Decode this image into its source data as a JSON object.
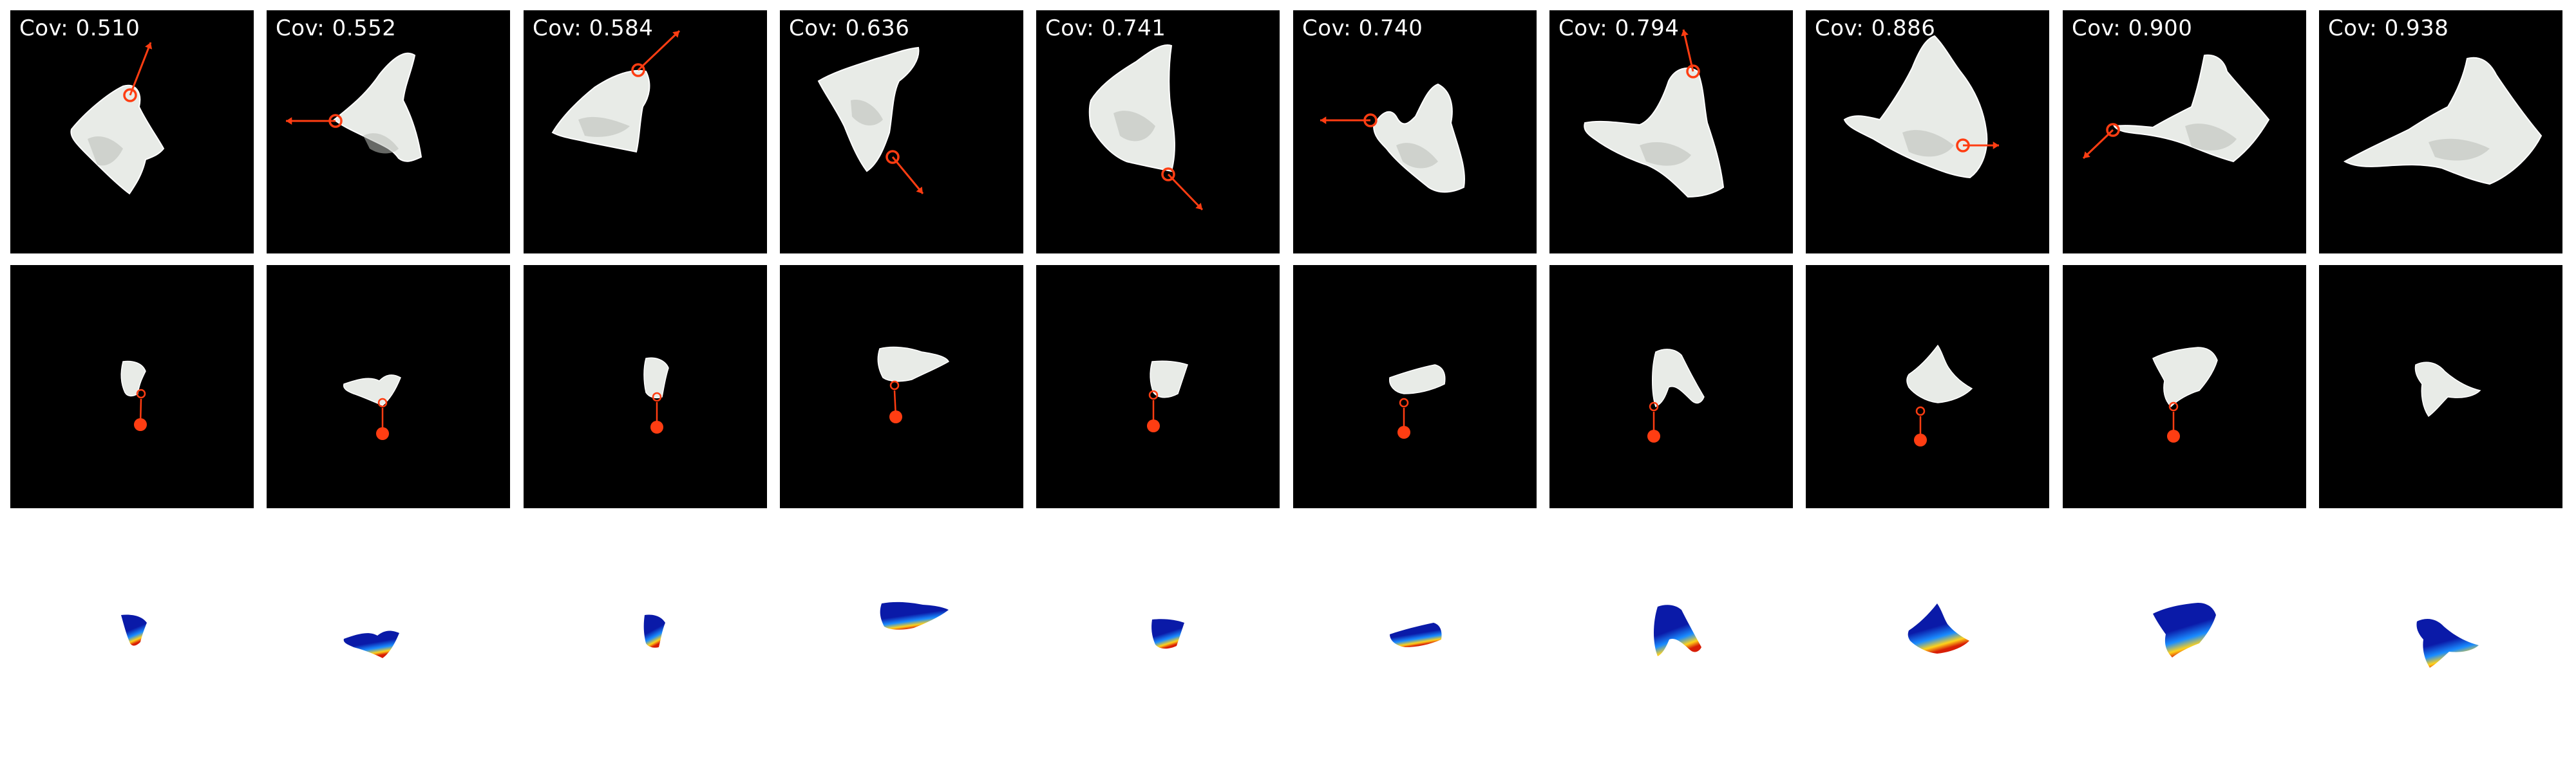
{
  "figure": {
    "rows": [
      "rgb-view",
      "overhead-view",
      "depth-map"
    ],
    "colors": {
      "background_dark": "#000000",
      "background_light": "#ffffff",
      "cloth": "#e8ebe7",
      "cloth_shadow": "#b9bdb8",
      "grasp_marker": "#ff3d12",
      "depth_far": "#0a1aa8",
      "depth_mid": "#1a8cff",
      "depth_near": "#ffd21a",
      "depth_contact": "#d81e06"
    },
    "steps": [
      {
        "coverage_label": "Cov: 0.510",
        "coverage": 0.51,
        "drag_direction": "up-right"
      },
      {
        "coverage_label": "Cov: 0.552",
        "coverage": 0.552,
        "drag_direction": "left"
      },
      {
        "coverage_label": "Cov: 0.584",
        "coverage": 0.584,
        "drag_direction": "up-right"
      },
      {
        "coverage_label": "Cov: 0.636",
        "coverage": 0.636,
        "drag_direction": "down-right"
      },
      {
        "coverage_label": "Cov: 0.741",
        "coverage": 0.741,
        "drag_direction": "down-right"
      },
      {
        "coverage_label": "Cov: 0.740",
        "coverage": 0.74,
        "drag_direction": "left"
      },
      {
        "coverage_label": "Cov: 0.794",
        "coverage": 0.794,
        "drag_direction": "up"
      },
      {
        "coverage_label": "Cov: 0.886",
        "coverage": 0.886,
        "drag_direction": "right"
      },
      {
        "coverage_label": "Cov: 0.900",
        "coverage": 0.9,
        "drag_direction": "down-left"
      },
      {
        "coverage_label": "Cov: 0.938",
        "coverage": 0.938,
        "drag_direction": "none"
      }
    ],
    "icons": {
      "grasp_point": "circle-marker-icon",
      "drag_arrow": "arrow-icon"
    }
  }
}
